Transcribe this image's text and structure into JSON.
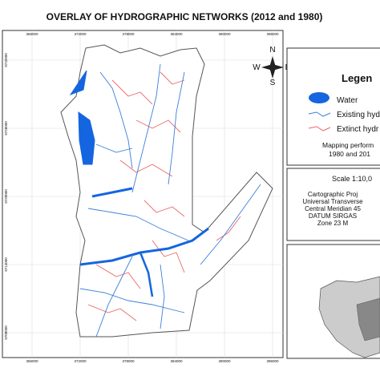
{
  "header": {
    "title": "OVERLAY OF HYDROGRAPHIC NETWORKS (2012 and 1980)"
  },
  "compass": {
    "north": "N",
    "south": "S",
    "east": "E",
    "west": "W"
  },
  "map": {
    "x_ticks": [
      "366000",
      "372000",
      "378000",
      "384000",
      "390000",
      "396000"
    ],
    "y_ticks": [
      "9732000",
      "9726000",
      "9720000",
      "9714000",
      "9708000"
    ]
  },
  "legend": {
    "title": "Legen",
    "items": [
      "Water",
      "Existing hyd",
      "Extinct hydr"
    ],
    "note": [
      "Mapping perform",
      "1980 and 201"
    ]
  },
  "scale_box": {
    "scale": "Scale 1:10,0",
    "lines": [
      "Cartographic Proj",
      "Universal Transverse",
      "Central Meridian 45",
      "DATUM SIRGAS",
      "Zone 23 M"
    ]
  }
}
